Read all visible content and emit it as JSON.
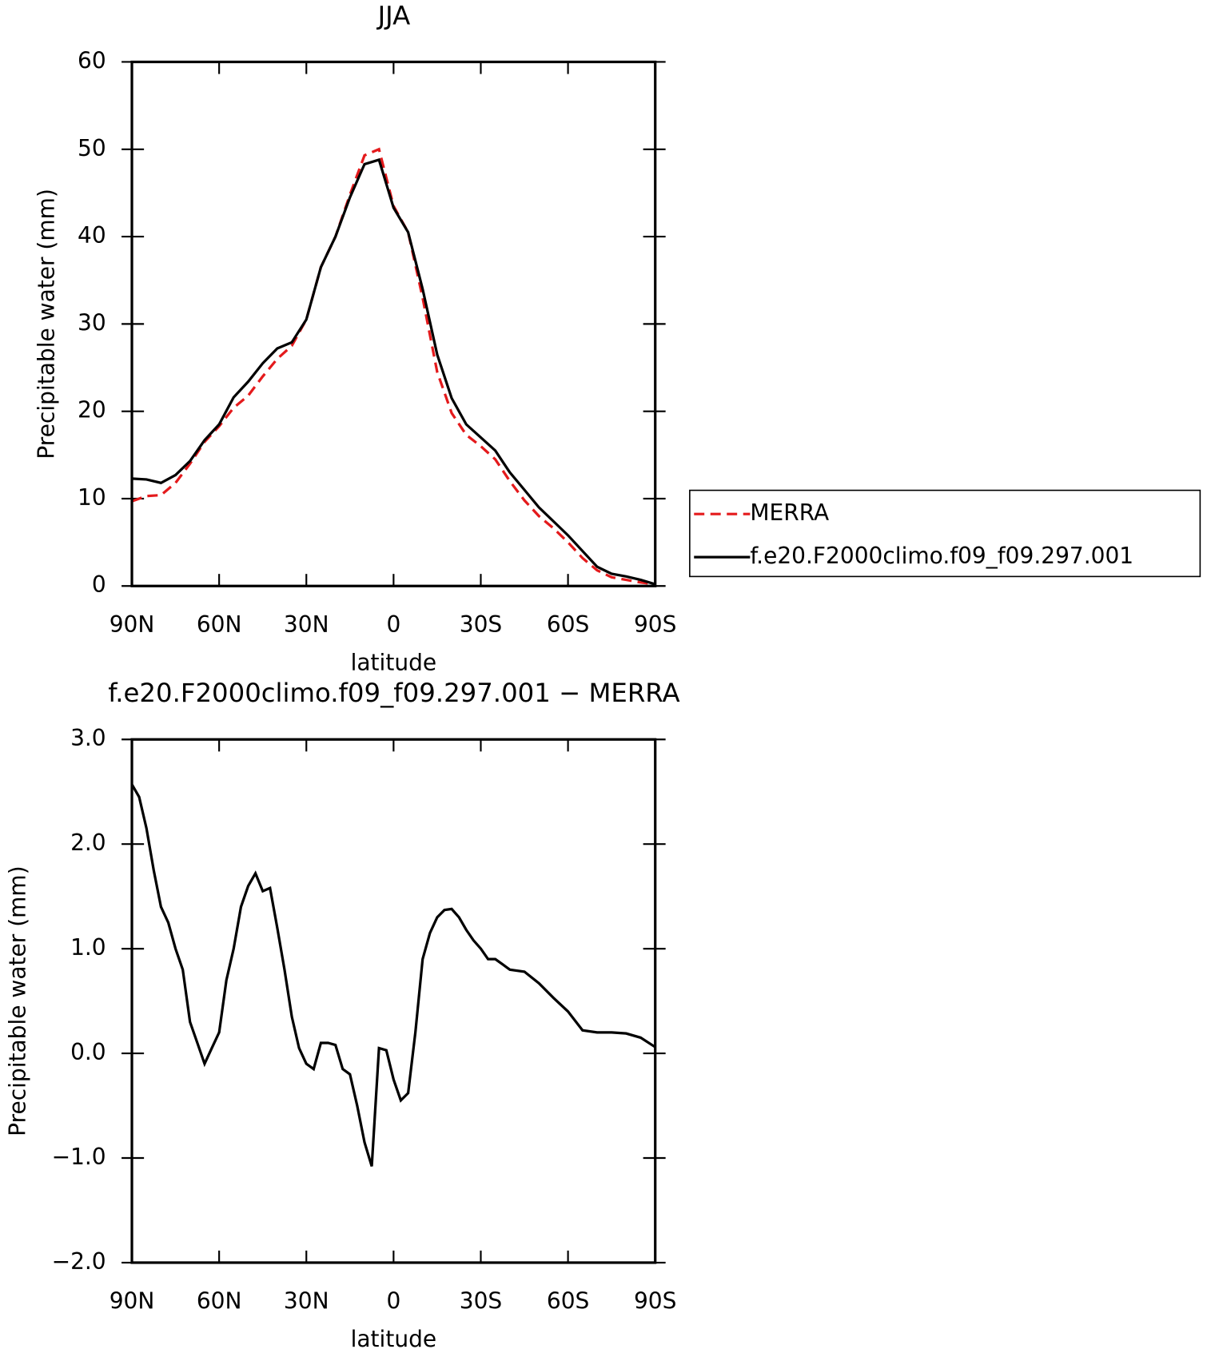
{
  "chart_data": [
    {
      "type": "line",
      "title": "JJA",
      "xlabel": "latitude",
      "ylabel": "Precipitable water (mm)",
      "x": [
        90,
        85,
        80,
        75,
        70,
        65,
        60,
        55,
        50,
        45,
        40,
        35,
        30,
        25,
        20,
        15,
        10,
        5,
        0,
        -5,
        -10,
        -15,
        -20,
        -25,
        -30,
        -35,
        -40,
        -45,
        -50,
        -55,
        -60,
        -65,
        -70,
        -75,
        -80,
        -85,
        -90
      ],
      "series": [
        {
          "name": "MERRA",
          "color": "#e41a1c",
          "dash": "dashed",
          "values": [
            9.7,
            10.3,
            10.4,
            11.8,
            14.0,
            16.5,
            18.3,
            20.4,
            21.8,
            24,
            26,
            27.5,
            30.5,
            36.5,
            40,
            44.8,
            49.3,
            50.0,
            43.5,
            40.5,
            33,
            24.5,
            19.8,
            17.3,
            16,
            14.5,
            12,
            9.8,
            8,
            6.6,
            5,
            3.2,
            1.8,
            1,
            0.7,
            0.4,
            0.2
          ]
        },
        {
          "name": "f.e20.F2000climo.f09_f09.297.001",
          "color": "#000000",
          "dash": "solid",
          "values": [
            12.3,
            12.2,
            11.8,
            12.7,
            14.3,
            16.7,
            18.5,
            21.6,
            23.4,
            25.5,
            27.2,
            27.9,
            30.5,
            36.5,
            40,
            44.5,
            48.3,
            48.8,
            43.3,
            40.5,
            34,
            26.5,
            21.5,
            18.5,
            17,
            15.5,
            13,
            11,
            9,
            7.4,
            5.8,
            4,
            2.2,
            1.4,
            1.1,
            0.7,
            0.2
          ]
        }
      ],
      "xlim": [
        90,
        -90
      ],
      "xticks": [
        {
          "value": 90,
          "label": "90N"
        },
        {
          "value": 60,
          "label": "60N"
        },
        {
          "value": 30,
          "label": "30N"
        },
        0,
        {
          "value": -30,
          "label": "30S"
        },
        {
          "value": -60,
          "label": "60S"
        },
        {
          "value": -90,
          "label": "90S"
        }
      ],
      "ylim": [
        0,
        60
      ],
      "yticks": [
        0,
        10,
        20,
        30,
        40,
        50,
        60
      ],
      "legend": "right"
    },
    {
      "type": "line",
      "title": "f.e20.F2000climo.f09_f09.297.001 − MERRA",
      "xlabel": "latitude",
      "ylabel": "Precipitable water (mm)",
      "x": [
        90,
        87.5,
        85,
        82.5,
        80,
        77.5,
        75,
        72.5,
        70,
        67.5,
        65,
        62.5,
        60,
        57.5,
        55,
        52.5,
        50,
        47.5,
        45,
        42.5,
        40,
        37.5,
        35,
        32.5,
        30,
        27.5,
        25,
        22.5,
        20,
        17.5,
        15,
        12.5,
        10,
        7.5,
        5,
        2.5,
        0,
        -2.5,
        -5,
        -7.5,
        -10,
        -12.5,
        -15,
        -17.5,
        -20,
        -22.5,
        -25,
        -27.5,
        -30,
        -32.5,
        -35,
        -37.5,
        -40,
        -45,
        -50,
        -55,
        -60,
        -65,
        -70,
        -75,
        -80,
        -85,
        -90
      ],
      "series": [
        {
          "name": "f.e20.F2000climo.f09_f09.297.001 − MERRA",
          "color": "#000000",
          "dash": "solid",
          "values": [
            2.57,
            2.45,
            2.15,
            1.75,
            1.4,
            1.25,
            1.0,
            0.8,
            0.3,
            0.1,
            -0.1,
            0.05,
            0.2,
            0.7,
            1.0,
            1.4,
            1.6,
            1.72,
            1.55,
            1.58,
            1.2,
            0.8,
            0.35,
            0.05,
            -0.1,
            -0.15,
            0.1,
            0.1,
            0.08,
            -0.15,
            -0.2,
            -0.5,
            -0.85,
            -1.08,
            0.05,
            0.03,
            -0.25,
            -0.45,
            -0.38,
            0.2,
            0.9,
            1.15,
            1.3,
            1.37,
            1.38,
            1.3,
            1.18,
            1.08,
            1.0,
            0.9,
            0.9,
            0.85,
            0.8,
            0.78,
            0.67,
            0.53,
            0.4,
            0.22,
            0.2,
            0.2,
            0.19,
            0.15,
            0.06
          ]
        }
      ],
      "xlim": [
        90,
        -90
      ],
      "xticks": [
        {
          "value": 90,
          "label": "90N"
        },
        {
          "value": 60,
          "label": "60N"
        },
        {
          "value": 30,
          "label": "30N"
        },
        0,
        {
          "value": -30,
          "label": "30S"
        },
        {
          "value": -60,
          "label": "60S"
        },
        {
          "value": -90,
          "label": "90S"
        }
      ],
      "ylim": [
        -2,
        3
      ],
      "yticks": [
        {
          "value": -2,
          "label": "−2.0"
        },
        {
          "value": -1,
          "label": "−1.0"
        },
        {
          "value": 0,
          "label": "0.0"
        },
        {
          "value": 1,
          "label": "1.0"
        },
        {
          "value": 2,
          "label": "2.0"
        },
        {
          "value": 3,
          "label": "3.0"
        }
      ]
    }
  ]
}
